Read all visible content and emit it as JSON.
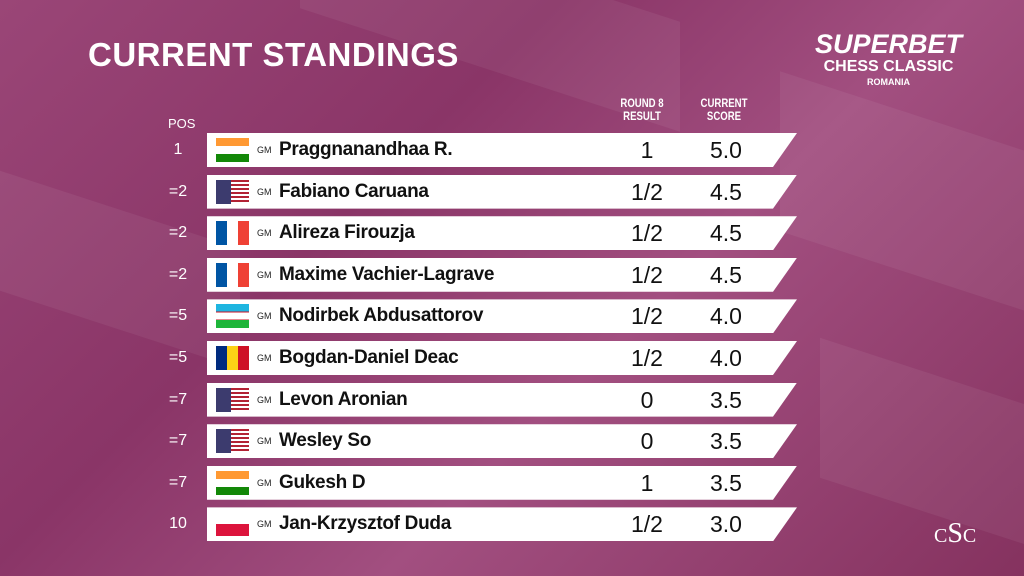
{
  "title": "CURRENT STANDINGS",
  "logo": {
    "line1": "SUPERBET",
    "line2": "CHESS CLASSIC",
    "line3": "ROMANIA",
    "monogram": "CSC"
  },
  "headers": {
    "pos": "POS",
    "result_1": "ROUND 8",
    "result_2": "RESULT",
    "score_1": "CURRENT",
    "score_2": "SCORE"
  },
  "rows": [
    {
      "pos": "1",
      "title": "GM",
      "name": "Praggnanandhaa R.",
      "flag": "india",
      "result": "1",
      "score": "5.0"
    },
    {
      "pos": "=2",
      "title": "GM",
      "name": "Fabiano Caruana",
      "flag": "usa",
      "result": "1/2",
      "score": "4.5"
    },
    {
      "pos": "=2",
      "title": "GM",
      "name": "Alireza Firouzja",
      "flag": "france",
      "result": "1/2",
      "score": "4.5"
    },
    {
      "pos": "=2",
      "title": "GM",
      "name": "Maxime Vachier-Lagrave",
      "flag": "france",
      "result": "1/2",
      "score": "4.5"
    },
    {
      "pos": "=5",
      "title": "GM",
      "name": "Nodirbek Abdusattorov",
      "flag": "uzbekistan",
      "result": "1/2",
      "score": "4.0"
    },
    {
      "pos": "=5",
      "title": "GM",
      "name": "Bogdan-Daniel Deac",
      "flag": "romania",
      "result": "1/2",
      "score": "4.0"
    },
    {
      "pos": "=7",
      "title": "GM",
      "name": "Levon Aronian",
      "flag": "usa",
      "result": "0",
      "score": "3.5"
    },
    {
      "pos": "=7",
      "title": "GM",
      "name": "Wesley So",
      "flag": "usa",
      "result": "0",
      "score": "3.5"
    },
    {
      "pos": "=7",
      "title": "GM",
      "name": "Gukesh D",
      "flag": "india",
      "result": "1",
      "score": "3.5"
    },
    {
      "pos": "10",
      "title": "GM",
      "name": "Jan-Krzysztof Duda",
      "flag": "poland",
      "result": "1/2",
      "score": "3.0"
    }
  ],
  "colors": {
    "background": "#8f3a6c",
    "row": "#ffffff"
  }
}
